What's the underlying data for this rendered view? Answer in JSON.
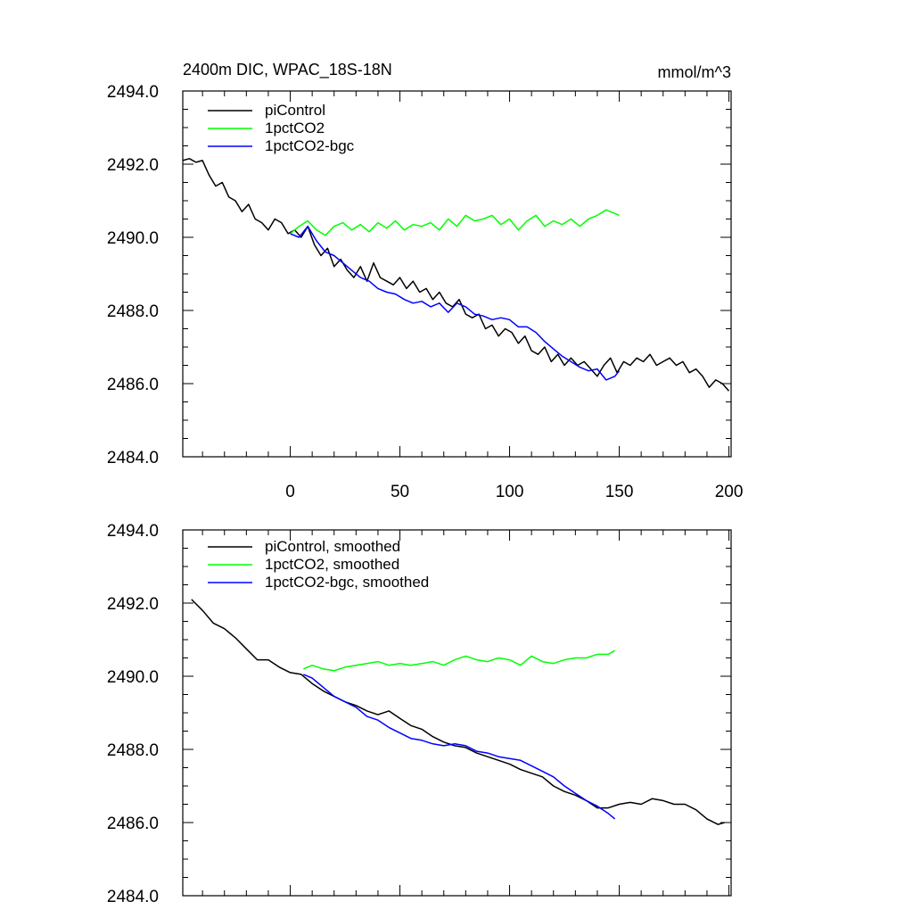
{
  "figure": {
    "title": "2400m DIC, WPAC_18S-18N",
    "units": "mmol/m^3"
  },
  "colors": {
    "piControl": "#000000",
    "1pctCO2": "#00ff00",
    "1pctCO2-bgc": "#0000ff"
  },
  "chart_data": [
    {
      "type": "line",
      "title": "2400m DIC, WPAC_18S-18N",
      "units": "mmol/m^3",
      "xlabel": "",
      "ylabel": "",
      "xlim": [
        -49,
        201
      ],
      "ylim": [
        2484,
        2494
      ],
      "xticks": [
        0,
        50,
        100,
        150,
        200
      ],
      "xtick_labels": [
        "0",
        "50",
        "100",
        "150",
        "200"
      ],
      "yticks": [
        2484,
        2486,
        2488,
        2490,
        2492,
        2494
      ],
      "ytick_labels": [
        "2484.0",
        "2486.0",
        "2488.0",
        "2490.0",
        "2492.0",
        "2494.0"
      ],
      "legend_position": "top-left",
      "series": [
        {
          "name": "piControl",
          "color": "#000000",
          "x": [
            -49,
            -46,
            -43,
            -40,
            -37,
            -34,
            -31,
            -28,
            -25,
            -22,
            -19,
            -16,
            -13,
            -10,
            -7,
            -4,
            -1,
            2,
            5,
            8,
            11,
            14,
            17,
            20,
            23,
            26,
            29,
            32,
            35,
            38,
            41,
            44,
            47,
            50,
            53,
            56,
            59,
            62,
            65,
            68,
            71,
            74,
            77,
            80,
            83,
            86,
            89,
            92,
            95,
            98,
            101,
            104,
            107,
            110,
            113,
            116,
            119,
            122,
            125,
            128,
            131,
            134,
            137,
            140,
            143,
            146,
            149,
            152,
            155,
            158,
            161,
            164,
            167,
            170,
            173,
            176,
            179,
            182,
            185,
            188,
            191,
            194,
            197,
            200
          ],
          "values": [
            2492.1,
            2492.15,
            2492.05,
            2492.1,
            2491.7,
            2491.4,
            2491.5,
            2491.1,
            2491.0,
            2490.7,
            2490.9,
            2490.5,
            2490.4,
            2490.2,
            2490.5,
            2490.4,
            2490.1,
            2490.2,
            2490.0,
            2490.3,
            2489.8,
            2489.5,
            2489.7,
            2489.2,
            2489.4,
            2489.1,
            2488.9,
            2489.2,
            2488.8,
            2489.3,
            2488.9,
            2488.8,
            2488.7,
            2488.9,
            2488.6,
            2488.8,
            2488.5,
            2488.6,
            2488.3,
            2488.5,
            2488.2,
            2488.1,
            2488.3,
            2487.9,
            2487.8,
            2487.9,
            2487.5,
            2487.6,
            2487.3,
            2487.5,
            2487.4,
            2487.1,
            2487.3,
            2486.9,
            2486.8,
            2487.0,
            2486.6,
            2486.8,
            2486.5,
            2486.7,
            2486.5,
            2486.6,
            2486.4,
            2486.2,
            2486.5,
            2486.7,
            2486.3,
            2486.6,
            2486.5,
            2486.7,
            2486.6,
            2486.8,
            2486.5,
            2486.6,
            2486.7,
            2486.5,
            2486.6,
            2486.3,
            2486.4,
            2486.2,
            2485.9,
            2486.1,
            2486.0,
            2485.8
          ]
        },
        {
          "name": "1pctCO2",
          "color": "#00ff00",
          "x": [
            0,
            4,
            8,
            12,
            16,
            20,
            24,
            28,
            32,
            36,
            40,
            44,
            48,
            52,
            56,
            60,
            64,
            68,
            72,
            76,
            80,
            84,
            88,
            92,
            96,
            100,
            104,
            108,
            112,
            116,
            120,
            124,
            128,
            132,
            136,
            140,
            144,
            148,
            150
          ],
          "values": [
            2490.1,
            2490.3,
            2490.45,
            2490.2,
            2490.05,
            2490.3,
            2490.4,
            2490.2,
            2490.35,
            2490.15,
            2490.4,
            2490.25,
            2490.45,
            2490.2,
            2490.35,
            2490.3,
            2490.4,
            2490.2,
            2490.5,
            2490.3,
            2490.6,
            2490.45,
            2490.5,
            2490.6,
            2490.35,
            2490.5,
            2490.2,
            2490.45,
            2490.6,
            2490.3,
            2490.45,
            2490.35,
            2490.5,
            2490.3,
            2490.5,
            2490.6,
            2490.75,
            2490.65,
            2490.6
          ]
        },
        {
          "name": "1pctCO2-bgc",
          "color": "#0000ff",
          "x": [
            0,
            4,
            8,
            12,
            16,
            20,
            24,
            28,
            32,
            36,
            40,
            44,
            48,
            52,
            56,
            60,
            64,
            68,
            72,
            76,
            80,
            84,
            88,
            92,
            96,
            100,
            104,
            108,
            112,
            116,
            120,
            124,
            128,
            132,
            136,
            140,
            144,
            148,
            150
          ],
          "values": [
            2490.1,
            2490.0,
            2490.3,
            2489.9,
            2489.6,
            2489.5,
            2489.3,
            2489.1,
            2488.9,
            2488.8,
            2488.6,
            2488.5,
            2488.45,
            2488.3,
            2488.2,
            2488.25,
            2488.1,
            2488.2,
            2487.95,
            2488.2,
            2488.1,
            2487.9,
            2487.85,
            2487.75,
            2487.8,
            2487.75,
            2487.55,
            2487.55,
            2487.4,
            2487.15,
            2486.95,
            2486.75,
            2486.6,
            2486.45,
            2486.35,
            2486.4,
            2486.1,
            2486.2,
            2486.35
          ]
        }
      ]
    },
    {
      "type": "line",
      "title": "",
      "xlabel": "",
      "ylabel": "",
      "xlim": [
        -49,
        201
      ],
      "ylim": [
        2484,
        2494
      ],
      "xticks": [
        0,
        50,
        100,
        150,
        200
      ],
      "yticks": [
        2484,
        2486,
        2488,
        2490,
        2492,
        2494
      ],
      "ytick_labels": [
        "2484.0",
        "2486.0",
        "2488.0",
        "2490.0",
        "2492.0",
        "2494.0"
      ],
      "legend_position": "top-left",
      "series": [
        {
          "name": "piControl, smoothed",
          "color": "#000000",
          "x": [
            -45,
            -40,
            -35,
            -30,
            -25,
            -20,
            -15,
            -10,
            -5,
            0,
            5,
            10,
            15,
            20,
            25,
            30,
            35,
            40,
            45,
            50,
            55,
            60,
            65,
            70,
            75,
            80,
            85,
            90,
            95,
            100,
            105,
            110,
            115,
            120,
            125,
            130,
            135,
            140,
            145,
            150,
            155,
            160,
            165,
            170,
            175,
            180,
            185,
            190,
            195,
            198
          ],
          "values": [
            2492.1,
            2491.8,
            2491.45,
            2491.3,
            2491.05,
            2490.75,
            2490.45,
            2490.45,
            2490.25,
            2490.1,
            2490.05,
            2489.8,
            2489.6,
            2489.45,
            2489.3,
            2489.2,
            2489.05,
            2488.95,
            2489.05,
            2488.85,
            2488.65,
            2488.55,
            2488.35,
            2488.2,
            2488.1,
            2488.05,
            2487.9,
            2487.8,
            2487.7,
            2487.6,
            2487.45,
            2487.35,
            2487.25,
            2487.0,
            2486.85,
            2486.75,
            2486.6,
            2486.4,
            2486.4,
            2486.5,
            2486.55,
            2486.5,
            2486.65,
            2486.6,
            2486.5,
            2486.5,
            2486.35,
            2486.1,
            2485.95,
            2486.0
          ]
        },
        {
          "name": "1pctCO2, smoothed",
          "color": "#00ff00",
          "x": [
            6,
            10,
            15,
            20,
            25,
            30,
            35,
            40,
            45,
            50,
            55,
            60,
            65,
            70,
            75,
            80,
            85,
            90,
            95,
            100,
            105,
            110,
            115,
            120,
            125,
            130,
            135,
            140,
            145,
            148
          ],
          "values": [
            2490.2,
            2490.3,
            2490.2,
            2490.15,
            2490.25,
            2490.3,
            2490.35,
            2490.4,
            2490.3,
            2490.35,
            2490.3,
            2490.35,
            2490.4,
            2490.3,
            2490.45,
            2490.55,
            2490.45,
            2490.4,
            2490.5,
            2490.45,
            2490.3,
            2490.55,
            2490.4,
            2490.35,
            2490.45,
            2490.5,
            2490.5,
            2490.6,
            2490.6,
            2490.7
          ]
        },
        {
          "name": "1pctCO2-bgc, smoothed",
          "color": "#0000ff",
          "x": [
            6,
            10,
            15,
            20,
            25,
            30,
            35,
            40,
            45,
            50,
            55,
            60,
            65,
            70,
            75,
            80,
            85,
            90,
            95,
            100,
            105,
            110,
            115,
            120,
            125,
            130,
            135,
            140,
            145,
            148
          ],
          "values": [
            2490.05,
            2489.95,
            2489.7,
            2489.45,
            2489.3,
            2489.15,
            2488.9,
            2488.8,
            2488.6,
            2488.45,
            2488.3,
            2488.25,
            2488.15,
            2488.1,
            2488.15,
            2488.1,
            2487.95,
            2487.9,
            2487.8,
            2487.75,
            2487.7,
            2487.55,
            2487.4,
            2487.25,
            2487.0,
            2486.8,
            2486.6,
            2486.45,
            2486.25,
            2486.1
          ]
        }
      ]
    }
  ]
}
